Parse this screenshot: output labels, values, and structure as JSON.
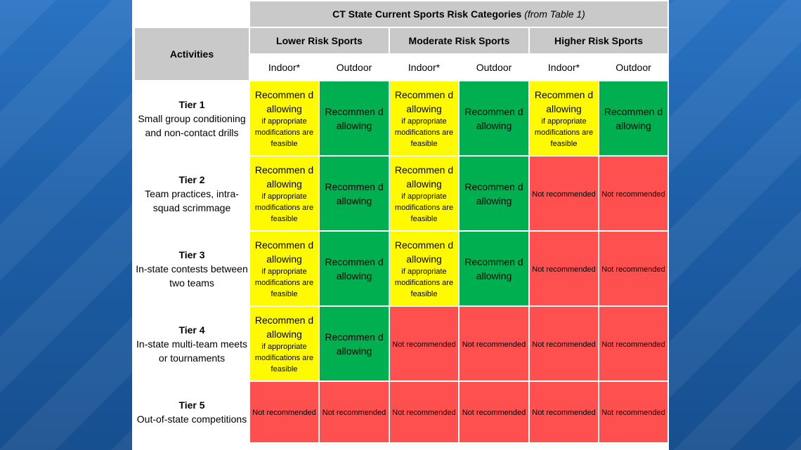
{
  "title": {
    "main": "CT State Current Sports Risk Categories",
    "italic": "(from Table 1)"
  },
  "activities_label": "Activities",
  "categories": [
    "Lower Risk Sports",
    "Moderate Risk Sports",
    "Higher Risk Sports"
  ],
  "settings": [
    "Indoor*",
    "Outdoor",
    "Indoor*",
    "Outdoor",
    "Indoor*",
    "Outdoor"
  ],
  "cell_text": {
    "rec_main": "Recommen d allowing",
    "rec_cond": "if appropriate modifications are feasible",
    "not_rec": "Not recommended"
  },
  "colors": {
    "yellow": "#fffa00",
    "green": "#00b050",
    "red": "#ff5050",
    "header_grey": "#c9c9c9",
    "background_blue": "#1d5fa8"
  },
  "tiers": [
    {
      "name": "Tier 1",
      "desc": "Small group conditioning and non-contact drills",
      "cells": [
        "conditional",
        "allowed",
        "conditional",
        "allowed",
        "conditional",
        "allowed"
      ]
    },
    {
      "name": "Tier 2",
      "desc": "Team practices, intra-squad scrimmage",
      "cells": [
        "conditional",
        "allowed",
        "conditional",
        "allowed",
        "not",
        "not"
      ]
    },
    {
      "name": "Tier 3",
      "desc": "In-state contests between two teams",
      "cells": [
        "conditional",
        "allowed",
        "conditional",
        "allowed",
        "not",
        "not"
      ]
    },
    {
      "name": "Tier 4",
      "desc": "In-state multi-team meets or tournaments",
      "cells": [
        "conditional",
        "allowed",
        "not",
        "not",
        "not",
        "not"
      ]
    },
    {
      "name": "Tier 5",
      "desc": "Out-of-state competitions",
      "cells": [
        "not",
        "not",
        "not",
        "not",
        "not",
        "not"
      ]
    }
  ]
}
